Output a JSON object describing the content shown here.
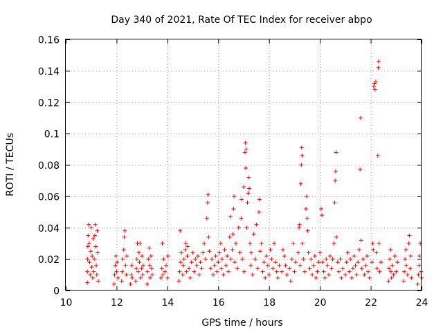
{
  "chart_data": {
    "type": "scatter",
    "title": "Day 340 of 2021, Rate Of TEC Index for receiver abpo",
    "xlabel": "GPS time / hours",
    "ylabel": "ROTI / TECUs",
    "xlim": [
      10,
      24
    ],
    "ylim": [
      0,
      0.16
    ],
    "x_ticks": [
      "10",
      "12",
      "14",
      "16",
      "18",
      "20",
      "22",
      "24"
    ],
    "y_ticks": [
      "0",
      "0.02",
      "0.04",
      "0.06",
      "0.08",
      "0.1",
      "0.12",
      "0.14",
      "0.16"
    ],
    "grid": true,
    "marker": "+",
    "marker_color": "#ff0000",
    "series": [
      {
        "name": "abpo",
        "points": [
          [
            10.85,
            0.005
          ],
          [
            10.85,
            0.012
          ],
          [
            10.86,
            0.02
          ],
          [
            10.87,
            0.028
          ],
          [
            10.88,
            0.035
          ],
          [
            10.9,
            0.042
          ],
          [
            10.92,
            0.03
          ],
          [
            10.94,
            0.018
          ],
          [
            10.96,
            0.01
          ],
          [
            10.98,
            0.025
          ],
          [
            11.0,
            0.04
          ],
          [
            11.02,
            0.015
          ],
          [
            11.04,
            0.022
          ],
          [
            11.06,
            0.008
          ],
          [
            11.08,
            0.033
          ],
          [
            11.1,
            0.012
          ],
          [
            11.12,
            0.02
          ],
          [
            11.14,
            0.035
          ],
          [
            11.16,
            0.042
          ],
          [
            11.18,
            0.028
          ],
          [
            11.2,
            0.016
          ],
          [
            11.22,
            0.01
          ],
          [
            11.24,
            0.038
          ],
          [
            11.26,
            0.024
          ],
          [
            11.28,
            0.006
          ],
          [
            11.9,
            0.004
          ],
          [
            11.92,
            0.01
          ],
          [
            11.95,
            0.016
          ],
          [
            11.98,
            0.022
          ],
          [
            12.0,
            0.012
          ],
          [
            12.02,
            0.018
          ],
          [
            12.05,
            0.008
          ],
          [
            12.2,
            0.006
          ],
          [
            12.22,
            0.012
          ],
          [
            12.25,
            0.02
          ],
          [
            12.28,
            0.026
          ],
          [
            12.3,
            0.034
          ],
          [
            12.32,
            0.038
          ],
          [
            12.35,
            0.016
          ],
          [
            12.38,
            0.01
          ],
          [
            12.4,
            0.022
          ],
          [
            12.55,
            0.004
          ],
          [
            12.58,
            0.01
          ],
          [
            12.6,
            0.016
          ],
          [
            12.62,
            0.008
          ],
          [
            12.75,
            0.006
          ],
          [
            12.78,
            0.014
          ],
          [
            12.8,
            0.02
          ],
          [
            12.82,
            0.03
          ],
          [
            12.85,
            0.012
          ],
          [
            12.88,
            0.024
          ],
          [
            12.9,
            0.018
          ],
          [
            12.92,
            0.03
          ],
          [
            12.95,
            0.008
          ],
          [
            12.98,
            0.014
          ],
          [
            13.0,
            0.022
          ],
          [
            13.02,
            0.01
          ],
          [
            13.05,
            0.016
          ],
          [
            13.2,
            0.004
          ],
          [
            13.22,
            0.012
          ],
          [
            13.25,
            0.02
          ],
          [
            13.28,
            0.027
          ],
          [
            13.3,
            0.016
          ],
          [
            13.32,
            0.008
          ],
          [
            13.35,
            0.022
          ],
          [
            13.38,
            0.014
          ],
          [
            13.4,
            0.01
          ],
          [
            13.75,
            0.008
          ],
          [
            13.78,
            0.014
          ],
          [
            13.8,
            0.03
          ],
          [
            13.82,
            0.01
          ],
          [
            13.85,
            0.02
          ],
          [
            13.9,
            0.012
          ],
          [
            13.95,
            0.016
          ],
          [
            14.0,
            0.008
          ],
          [
            14.02,
            0.022
          ],
          [
            14.45,
            0.006
          ],
          [
            14.48,
            0.012
          ],
          [
            14.5,
            0.038
          ],
          [
            14.52,
            0.018
          ],
          [
            14.55,
            0.024
          ],
          [
            14.6,
            0.01
          ],
          [
            14.62,
            0.016
          ],
          [
            14.65,
            0.02
          ],
          [
            14.7,
            0.026
          ],
          [
            14.72,
            0.03
          ],
          [
            14.75,
            0.012
          ],
          [
            14.78,
            0.022
          ],
          [
            14.8,
            0.028
          ],
          [
            14.85,
            0.014
          ],
          [
            14.9,
            0.008
          ],
          [
            14.95,
            0.018
          ],
          [
            15.0,
            0.024
          ],
          [
            15.05,
            0.012
          ],
          [
            15.1,
            0.02
          ],
          [
            15.15,
            0.016
          ],
          [
            15.2,
            0.022
          ],
          [
            15.25,
            0.01
          ],
          [
            15.3,
            0.018
          ],
          [
            15.35,
            0.014
          ],
          [
            15.4,
            0.024
          ],
          [
            15.45,
            0.03
          ],
          [
            15.5,
            0.02
          ],
          [
            15.55,
            0.046
          ],
          [
            15.58,
            0.056
          ],
          [
            15.6,
            0.061
          ],
          [
            15.62,
            0.034
          ],
          [
            15.65,
            0.025
          ],
          [
            15.7,
            0.014
          ],
          [
            15.75,
            0.02
          ],
          [
            15.8,
            0.01
          ],
          [
            15.85,
            0.016
          ],
          [
            15.9,
            0.022
          ],
          [
            15.95,
            0.012
          ],
          [
            16.0,
            0.018
          ],
          [
            16.05,
            0.024
          ],
          [
            16.1,
            0.03
          ],
          [
            16.12,
            0.014
          ],
          [
            16.15,
            0.02
          ],
          [
            16.2,
            0.01
          ],
          [
            16.25,
            0.026
          ],
          [
            16.3,
            0.016
          ],
          [
            16.35,
            0.022
          ],
          [
            16.4,
            0.012
          ],
          [
            16.45,
            0.034
          ],
          [
            16.48,
            0.047
          ],
          [
            16.5,
            0.02
          ],
          [
            16.55,
            0.026
          ],
          [
            16.58,
            0.036
          ],
          [
            16.6,
            0.052
          ],
          [
            16.62,
            0.06
          ],
          [
            16.65,
            0.018
          ],
          [
            16.7,
            0.03
          ],
          [
            16.75,
            0.014
          ],
          [
            16.8,
            0.04
          ],
          [
            16.85,
            0.024
          ],
          [
            16.9,
            0.046
          ],
          [
            16.92,
            0.058
          ],
          [
            16.95,
            0.02
          ],
          [
            17.0,
            0.066
          ],
          [
            17.02,
            0.012
          ],
          [
            17.05,
            0.088
          ],
          [
            17.07,
            0.094
          ],
          [
            17.08,
            0.078
          ],
          [
            17.1,
            0.09
          ],
          [
            17.12,
            0.04
          ],
          [
            17.15,
            0.056
          ],
          [
            17.18,
            0.062
          ],
          [
            17.2,
            0.072
          ],
          [
            17.22,
            0.065
          ],
          [
            17.25,
            0.03
          ],
          [
            17.28,
            0.016
          ],
          [
            17.3,
            0.024
          ],
          [
            17.35,
            0.01
          ],
          [
            17.4,
            0.036
          ],
          [
            17.45,
            0.02
          ],
          [
            17.5,
            0.042
          ],
          [
            17.55,
            0.014
          ],
          [
            17.6,
            0.05
          ],
          [
            17.62,
            0.058
          ],
          [
            17.65,
            0.025
          ],
          [
            17.7,
            0.03
          ],
          [
            17.75,
            0.012
          ],
          [
            17.8,
            0.018
          ],
          [
            17.85,
            0.008
          ],
          [
            17.9,
            0.022
          ],
          [
            17.95,
            0.016
          ],
          [
            18.0,
            0.01
          ],
          [
            18.05,
            0.026
          ],
          [
            18.1,
            0.02
          ],
          [
            18.15,
            0.014
          ],
          [
            18.2,
            0.03
          ],
          [
            18.25,
            0.018
          ],
          [
            18.3,
            0.012
          ],
          [
            18.35,
            0.008
          ],
          [
            18.4,
            0.016
          ],
          [
            18.5,
            0.012
          ],
          [
            18.55,
            0.026
          ],
          [
            18.6,
            0.022
          ],
          [
            18.65,
            0.016
          ],
          [
            18.7,
            0.01
          ],
          [
            18.8,
            0.014
          ],
          [
            18.85,
            0.006
          ],
          [
            18.9,
            0.02
          ],
          [
            18.95,
            0.03
          ],
          [
            19.0,
            0.012
          ],
          [
            19.05,
            0.018
          ],
          [
            19.15,
            0.024
          ],
          [
            19.18,
            0.04
          ],
          [
            19.2,
            0.042
          ],
          [
            19.22,
            0.016
          ],
          [
            19.25,
            0.068
          ],
          [
            19.27,
            0.08
          ],
          [
            19.28,
            0.091
          ],
          [
            19.3,
            0.086
          ],
          [
            19.32,
            0.03
          ],
          [
            19.35,
            0.02
          ],
          [
            19.4,
            0.012
          ],
          [
            19.45,
            0.052
          ],
          [
            19.48,
            0.06
          ],
          [
            19.5,
            0.046
          ],
          [
            19.52,
            0.038
          ],
          [
            19.55,
            0.024
          ],
          [
            19.6,
            0.014
          ],
          [
            19.65,
            0.02
          ],
          [
            19.7,
            0.01
          ],
          [
            19.75,
            0.016
          ],
          [
            19.8,
            0.022
          ],
          [
            19.85,
            0.008
          ],
          [
            19.9,
            0.012
          ],
          [
            19.95,
            0.018
          ],
          [
            20.0,
            0.024
          ],
          [
            20.05,
            0.052
          ],
          [
            20.08,
            0.048
          ],
          [
            20.1,
            0.018
          ],
          [
            20.15,
            0.012
          ],
          [
            20.2,
            0.008
          ],
          [
            20.25,
            0.02
          ],
          [
            20.3,
            0.016
          ],
          [
            20.35,
            0.01
          ],
          [
            20.4,
            0.022
          ],
          [
            20.45,
            0.014
          ],
          [
            20.5,
            0.02
          ],
          [
            20.55,
            0.03
          ],
          [
            20.58,
            0.056
          ],
          [
            20.6,
            0.07
          ],
          [
            20.62,
            0.076
          ],
          [
            20.64,
            0.088
          ],
          [
            20.65,
            0.034
          ],
          [
            20.7,
            0.018
          ],
          [
            20.75,
            0.012
          ],
          [
            20.8,
            0.02
          ],
          [
            20.85,
            0.008
          ],
          [
            20.9,
            0.014
          ],
          [
            21.0,
            0.01
          ],
          [
            21.05,
            0.018
          ],
          [
            21.1,
            0.024
          ],
          [
            21.15,
            0.012
          ],
          [
            21.2,
            0.02
          ],
          [
            21.25,
            0.008
          ],
          [
            21.3,
            0.014
          ],
          [
            21.35,
            0.022
          ],
          [
            21.4,
            0.016
          ],
          [
            21.45,
            0.01
          ],
          [
            21.5,
            0.018
          ],
          [
            21.55,
            0.026
          ],
          [
            21.58,
            0.077
          ],
          [
            21.6,
            0.11
          ],
          [
            21.62,
            0.032
          ],
          [
            21.65,
            0.014
          ],
          [
            21.7,
            0.02
          ],
          [
            21.75,
            0.01
          ],
          [
            21.8,
            0.016
          ],
          [
            21.85,
            0.022
          ],
          [
            21.9,
            0.012
          ],
          [
            21.95,
            0.008
          ],
          [
            22.05,
            0.018
          ],
          [
            22.08,
            0.03
          ],
          [
            22.1,
            0.026
          ],
          [
            22.12,
            0.13
          ],
          [
            22.15,
            0.132
          ],
          [
            22.17,
            0.128
          ],
          [
            22.2,
            0.133
          ],
          [
            22.22,
            0.024
          ],
          [
            22.25,
            0.014
          ],
          [
            22.28,
            0.086
          ],
          [
            22.3,
            0.142
          ],
          [
            22.31,
            0.146
          ],
          [
            22.33,
            0.03
          ],
          [
            22.35,
            0.012
          ],
          [
            22.4,
            0.018
          ],
          [
            22.7,
            0.006
          ],
          [
            22.72,
            0.014
          ],
          [
            22.75,
            0.02
          ],
          [
            22.78,
            0.026
          ],
          [
            22.8,
            0.012
          ],
          [
            22.82,
            0.008
          ],
          [
            22.85,
            0.016
          ],
          [
            22.9,
            0.01
          ],
          [
            22.95,
            0.022
          ],
          [
            23.0,
            0.012
          ],
          [
            23.05,
            0.018
          ],
          [
            23.3,
            0.006
          ],
          [
            23.32,
            0.012
          ],
          [
            23.35,
            0.02
          ],
          [
            23.38,
            0.026
          ],
          [
            23.4,
            0.016
          ],
          [
            23.45,
            0.01
          ],
          [
            23.5,
            0.03
          ],
          [
            23.52,
            0.035
          ],
          [
            23.55,
            0.014
          ],
          [
            23.58,
            0.022
          ],
          [
            23.6,
            0.008
          ],
          [
            23.85,
            0.004
          ],
          [
            23.88,
            0.01
          ],
          [
            23.9,
            0.016
          ],
          [
            23.92,
            0.022
          ],
          [
            23.95,
            0.03
          ],
          [
            23.98,
            0.012
          ],
          [
            24.0,
            0.008
          ]
        ]
      }
    ]
  }
}
